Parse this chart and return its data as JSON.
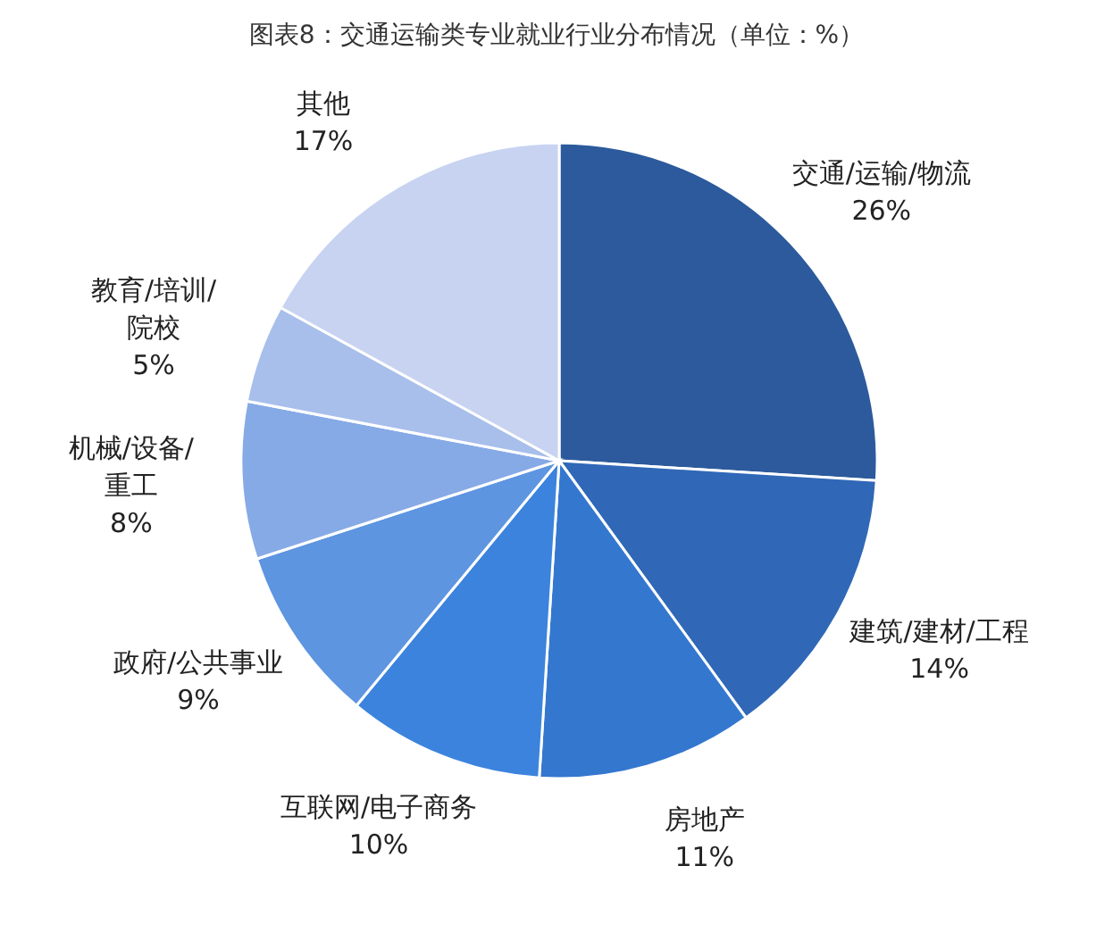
{
  "chart_data": {
    "type": "pie",
    "title": "图表8：交通运输类专业就业行业分布情况（单位：%）",
    "categories": [
      "交通/运输/物流",
      "建筑/建材/工程",
      "房地产",
      "互联网/电子商务",
      "政府/公共事业",
      "机械/设备/重工",
      "教育/培训/院校",
      "其他"
    ],
    "values": [
      26,
      14,
      11,
      10,
      9,
      8,
      5,
      17
    ],
    "value_labels": [
      "26%",
      "14%",
      "11%",
      "10%",
      "9%",
      "8%",
      "5%",
      "17%"
    ],
    "colors": [
      "#2c5a9c",
      "#3068b7",
      "#3477cf",
      "#3c83dd",
      "#5d95e0",
      "#86aae6",
      "#a8bfeb",
      "#c7d3f1"
    ]
  }
}
